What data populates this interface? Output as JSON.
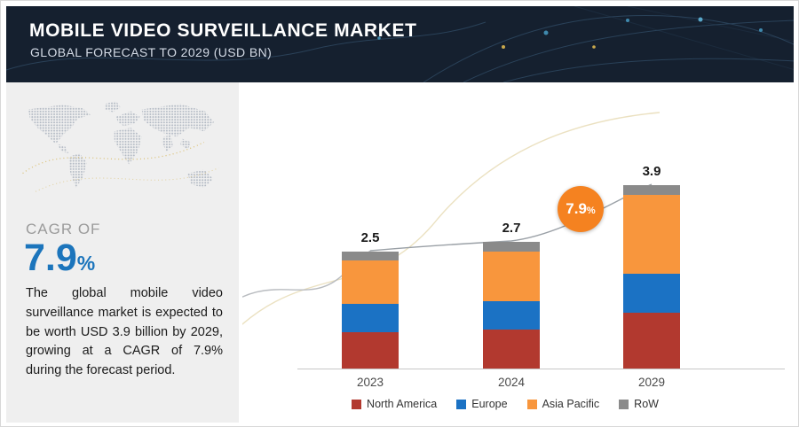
{
  "header": {
    "title": "MOBILE VIDEO SURVEILLANCE MARKET",
    "subtitle": "GLOBAL FORECAST TO 2029 (USD BN)"
  },
  "sidebar": {
    "cagr_label": "CAGR OF",
    "cagr_value": "7.9",
    "cagr_unit": "%",
    "description": "The global mobile video surveillance market is expected to be worth USD 3.9 billion by 2029, growing at a CAGR of 7.9% during the forecast period."
  },
  "badge": {
    "value": "7.9",
    "unit": "%"
  },
  "colors": {
    "header_bg": "#15202f",
    "accent_blue": "#1c75bc",
    "badge_orange": "#f58220",
    "sidebar_bg": "#efefef"
  },
  "chart_data": {
    "type": "bar",
    "stacked": true,
    "categories": [
      "2023",
      "2024",
      "2029"
    ],
    "totals": [
      2.5,
      2.7,
      3.9
    ],
    "value_labels": [
      "2.5",
      "2.7",
      "3.9"
    ],
    "series": [
      {
        "name": "North America",
        "color": "#b2392f",
        "values": [
          0.78,
          0.83,
          1.19
        ]
      },
      {
        "name": "Europe",
        "color": "#1b72c4",
        "values": [
          0.6,
          0.6,
          0.83
        ]
      },
      {
        "name": "Asia Pacific",
        "color": "#f8963d",
        "values": [
          0.92,
          1.07,
          1.67
        ]
      },
      {
        "name": "RoW",
        "color": "#8a8a8a",
        "values": [
          0.2,
          0.2,
          0.21
        ]
      }
    ],
    "annotation": {
      "text": "7.9%",
      "position": "between 2024 and 2029 bars"
    },
    "ylabel": "USD BN",
    "ylim": [
      0,
      4.2
    ],
    "gridlines": false,
    "legend_position": "bottom"
  }
}
